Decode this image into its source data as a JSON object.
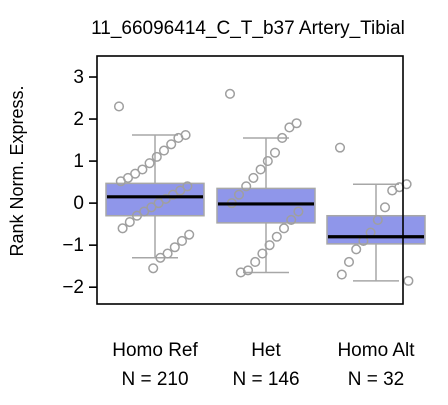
{
  "chart_data": {
    "type": "box",
    "title": "11_66096414_C_T_b37 Artery_Tibial",
    "xlabel": "",
    "ylabel": "Rank Norm. Express.",
    "ylim": [
      -2.4,
      3.5
    ],
    "yticks": [
      3,
      2,
      1,
      0,
      -1,
      -2
    ],
    "categories": [
      "Homo Ref",
      "Het",
      "Homo Alt"
    ],
    "counts_labels": [
      "N = 210",
      "N = 146",
      "N = 32"
    ],
    "box_color": "#8f96ea",
    "box_border_color": "#a7a7a7",
    "median_color": "#000000",
    "point_color": "#9f9f9f",
    "boxes": [
      {
        "name": "Homo Ref",
        "q1": -0.3,
        "median": 0.15,
        "q3": 0.47,
        "whisker_low": -1.3,
        "whisker_high": 1.62
      },
      {
        "name": "Het",
        "q1": -0.47,
        "median": -0.02,
        "q3": 0.35,
        "whisker_low": -1.65,
        "whisker_high": 1.55
      },
      {
        "name": "Homo Alt",
        "q1": -0.97,
        "median": -0.8,
        "q3": -0.3,
        "whisker_low": -1.85,
        "whisker_high": 0.45
      }
    ],
    "points_visible": {
      "Homo Ref": [
        2.3,
        1.62,
        1.55,
        1.4,
        1.25,
        1.1,
        0.95,
        0.8,
        0.7,
        0.6,
        0.52,
        0.4,
        0.3,
        0.2,
        0.1,
        0.0,
        -0.1,
        -0.2,
        -0.3,
        -0.45,
        -0.6,
        -0.75,
        -0.9,
        -1.05,
        -1.2,
        -1.3,
        -1.55
      ],
      "Het": [
        2.6,
        1.9,
        1.8,
        1.55,
        1.2,
        1.0,
        0.8,
        0.6,
        0.4,
        0.2,
        0.0,
        -0.2,
        -0.4,
        -0.6,
        -0.8,
        -1.0,
        -1.2,
        -1.4,
        -1.6,
        -1.65
      ],
      "Homo Alt": [
        1.32,
        0.45,
        0.38,
        0.3,
        -0.1,
        -0.4,
        -0.7,
        -0.9,
        -1.1,
        -1.4,
        -1.7,
        -1.85
      ]
    }
  }
}
